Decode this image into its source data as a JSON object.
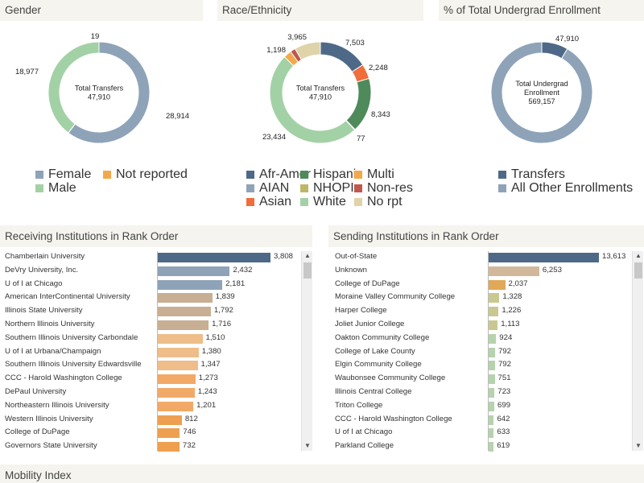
{
  "headers": {
    "gender": "Gender",
    "race": "Race/Ethnicity",
    "pct": "% of Total Undergrad Enrollment",
    "receiving": "Receiving Institutions in Rank Order",
    "sending": "Sending Institutions in Rank Order",
    "mobility": "Mobility Index"
  },
  "chart_data": [
    {
      "type": "pie",
      "title": "Gender",
      "center_label": [
        "Total Transfers",
        "47,910"
      ],
      "slices": [
        {
          "name": "Female",
          "value": 28914,
          "label": "28,914",
          "color": "#8ea3b8"
        },
        {
          "name": "Not reported",
          "value": 19,
          "label": "19",
          "color": "#f3a94a"
        },
        {
          "name": "Male",
          "value": 18977,
          "label": "18,977",
          "color": "#a3d1a6"
        }
      ],
      "legend": [
        {
          "name": "Female",
          "color": "#8ea3b8"
        },
        {
          "name": "Not reported",
          "color": "#f3a94a"
        },
        {
          "name": "Male",
          "color": "#a3d1a6"
        }
      ]
    },
    {
      "type": "pie",
      "title": "Race/Ethnicity",
      "center_label": [
        "Total Transfers",
        "47,910"
      ],
      "slices": [
        {
          "name": "Afr-Amer",
          "value": 7503,
          "label": "7,503",
          "color": "#4e6988"
        },
        {
          "name": "Asian",
          "value": 2248,
          "label": "2,248",
          "color": "#ef6e3b"
        },
        {
          "name": "Hispanic",
          "value": 8343,
          "label": "8,343",
          "color": "#4f8a5b"
        },
        {
          "name": "AIAN",
          "value": 77,
          "label": "77",
          "color": "#8ea3b8"
        },
        {
          "name": "White",
          "value": 23434,
          "label": "23,434",
          "color": "#a3d1a6"
        },
        {
          "name": "Multi",
          "value": 1198,
          "label": "1,198",
          "color": "#f3a94a"
        },
        {
          "name": "Non-res",
          "value": 800,
          "label": "",
          "color": "#c0584e"
        },
        {
          "name": "No rpt",
          "value": 3965,
          "label": "3,965",
          "color": "#dfd3a9"
        }
      ],
      "legend": [
        {
          "name": "Afr-Amer",
          "color": "#4e6988"
        },
        {
          "name": "Hispanic",
          "color": "#4f8a5b"
        },
        {
          "name": "Multi",
          "color": "#f3a94a"
        },
        {
          "name": "AIAN",
          "color": "#8ea3b8"
        },
        {
          "name": "NHOPI",
          "color": "#bcb867"
        },
        {
          "name": "Non-res",
          "color": "#c0584e"
        },
        {
          "name": "Asian",
          "color": "#ef6e3b"
        },
        {
          "name": "White",
          "color": "#a3d1a6"
        },
        {
          "name": "No rpt",
          "color": "#dfd3a9"
        }
      ]
    },
    {
      "type": "pie",
      "title": "% of Total Undergrad Enrollment",
      "center_label": [
        "Total Undergrad",
        "Enrollment",
        "569,157"
      ],
      "slices": [
        {
          "name": "Transfers",
          "value": 47910,
          "label": "47,910",
          "color": "#4e6988"
        },
        {
          "name": "All Other Enrollments",
          "value": 521247,
          "label": "",
          "color": "#8ea3b8"
        }
      ],
      "legend": [
        {
          "name": "Transfers",
          "color": "#4e6988"
        },
        {
          "name": "All Other Enrollments",
          "color": "#8ea3b8"
        }
      ]
    },
    {
      "type": "bar",
      "title": "Receiving Institutions in Rank Order",
      "max": 3808,
      "bars": [
        {
          "label": "Chamberlain University",
          "value": 3808,
          "text": "3,808",
          "color": "#4e6988"
        },
        {
          "label": "DeVry University, Inc.",
          "value": 2432,
          "text": "2,432",
          "color": "#8ea3b8"
        },
        {
          "label": "U of I at Chicago",
          "value": 2181,
          "text": "2,181",
          "color": "#8ea3b8"
        },
        {
          "label": "American InterContinental University",
          "value": 1839,
          "text": "1,839",
          "color": "#c8af93"
        },
        {
          "label": "Illinois State University",
          "value": 1792,
          "text": "1,792",
          "color": "#c8af93"
        },
        {
          "label": "Northern Illinois University",
          "value": 1716,
          "text": "1,716",
          "color": "#c8af93"
        },
        {
          "label": "Southern Illinois University Carbondale",
          "value": 1510,
          "text": "1,510",
          "color": "#eebd8a"
        },
        {
          "label": "U of I at Urbana/Champaign",
          "value": 1380,
          "text": "1,380",
          "color": "#eebd8a"
        },
        {
          "label": "Southern Illinois University Edwardsville",
          "value": 1347,
          "text": "1,347",
          "color": "#eebd8a"
        },
        {
          "label": "CCC - Harold Washington College",
          "value": 1273,
          "text": "1,273",
          "color": "#f2a968"
        },
        {
          "label": "DePaul University",
          "value": 1243,
          "text": "1,243",
          "color": "#f2a968"
        },
        {
          "label": "Northeastern Illinois University",
          "value": 1201,
          "text": "1,201",
          "color": "#f2a968"
        },
        {
          "label": "Western Illinois University",
          "value": 812,
          "text": "812",
          "color": "#eea050"
        },
        {
          "label": "College of DuPage",
          "value": 746,
          "text": "746",
          "color": "#eea050"
        },
        {
          "label": "Governors State University",
          "value": 732,
          "text": "732",
          "color": "#eea050"
        }
      ]
    },
    {
      "type": "bar",
      "title": "Sending Institutions in Rank Order",
      "max": 13613,
      "bars": [
        {
          "label": "Out-of-State",
          "value": 13613,
          "text": "13,613",
          "color": "#4e6988"
        },
        {
          "label": "Unknown",
          "value": 6253,
          "text": "6,253",
          "color": "#d2b89b"
        },
        {
          "label": "College of DuPage",
          "value": 2037,
          "text": "2,037",
          "color": "#e0a857"
        },
        {
          "label": "Moraine Valley Community College",
          "value": 1328,
          "text": "1,328",
          "color": "#c9c891"
        },
        {
          "label": "Harper College",
          "value": 1226,
          "text": "1,226",
          "color": "#c9c891"
        },
        {
          "label": "Joliet Junior College",
          "value": 1113,
          "text": "1,113",
          "color": "#c9c891"
        },
        {
          "label": "Oakton Community College",
          "value": 924,
          "text": "924",
          "color": "#b5d3ac"
        },
        {
          "label": "College of Lake County",
          "value": 792,
          "text": "792",
          "color": "#b5d3ac"
        },
        {
          "label": "Elgin Community College",
          "value": 792,
          "text": "792",
          "color": "#b5d3ac"
        },
        {
          "label": "Waubonsee Community College",
          "value": 751,
          "text": "751",
          "color": "#b5d3ac"
        },
        {
          "label": "Illinois Central College",
          "value": 723,
          "text": "723",
          "color": "#b5d3ac"
        },
        {
          "label": "Triton College",
          "value": 699,
          "text": "699",
          "color": "#b5d3ac"
        },
        {
          "label": "CCC - Harold Washington College",
          "value": 642,
          "text": "642",
          "color": "#b5d3ac"
        },
        {
          "label": "U of I at Chicago",
          "value": 633,
          "text": "633",
          "color": "#b5d3ac"
        },
        {
          "label": "Parkland College",
          "value": 619,
          "text": "619",
          "color": "#b5d3ac"
        }
      ]
    }
  ]
}
